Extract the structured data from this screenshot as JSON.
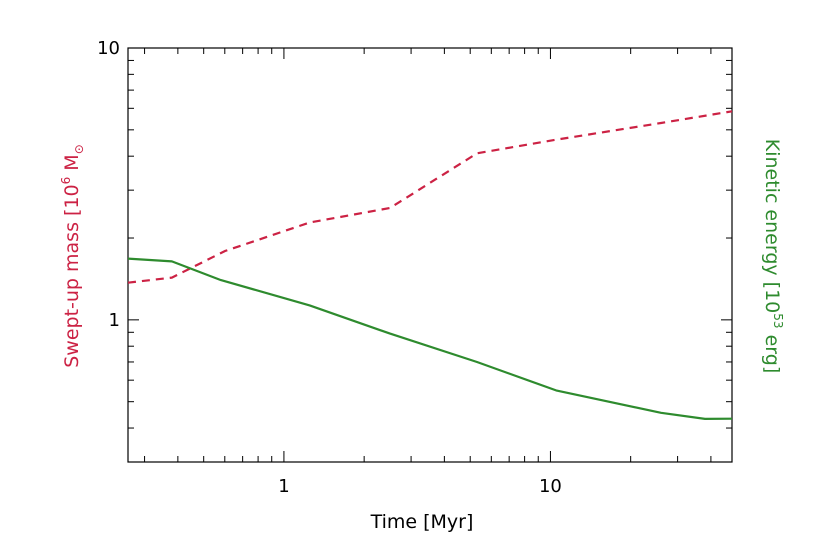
{
  "chart_data": {
    "type": "line",
    "title": "",
    "xlabel": "Time [Myr]",
    "xscale": "log",
    "xlim": [
      0.26,
      48
    ],
    "x_ticks": [
      {
        "value": 1,
        "label": "1"
      },
      {
        "value": 10,
        "label": "10"
      }
    ],
    "ylabel_left": {
      "prefix": "Swept-up mass [10",
      "sup": "6",
      "suffix": " M",
      "sun": "⊙",
      "color": "#cc2244"
    },
    "ylabel_right": {
      "prefix": "Kinetic energy [10",
      "sup": "53",
      "suffix": " erg]",
      "color": "#2e8b2e"
    },
    "yscale": "log",
    "ylim": [
      0.3,
      10
    ],
    "y_ticks": [
      {
        "value": 1,
        "label": "1"
      },
      {
        "value": 10,
        "label": "10"
      }
    ],
    "grid": false,
    "series": [
      {
        "axis": "left",
        "color": "#cc2244",
        "dash": "dashed",
        "x": [
          0.26,
          0.38,
          0.6,
          1.25,
          2.5,
          5.3,
          10.5,
          26,
          48
        ],
        "y": [
          1.37,
          1.43,
          1.79,
          2.28,
          2.58,
          4.1,
          4.6,
          5.3,
          5.85
        ]
      },
      {
        "axis": "right",
        "color": "#2e8b2e",
        "dash": "solid",
        "x": [
          0.26,
          0.38,
          0.58,
          1.25,
          2.5,
          5.3,
          10.5,
          26,
          38,
          48
        ],
        "y": [
          1.68,
          1.64,
          1.4,
          1.13,
          0.89,
          0.7,
          0.55,
          0.455,
          0.432,
          0.433
        ]
      }
    ]
  }
}
